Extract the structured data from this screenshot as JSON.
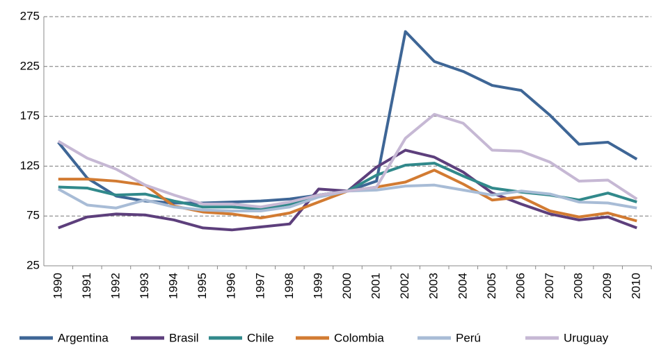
{
  "chart_data": {
    "type": "line",
    "categories": [
      "1990",
      "1991",
      "1992",
      "1993",
      "1994",
      "1995",
      "1996",
      "1997",
      "1998",
      "1999",
      "2000",
      "2001",
      "2002",
      "2003",
      "2004",
      "2005",
      "2006",
      "2007",
      "2008",
      "2009",
      "2010"
    ],
    "series": [
      {
        "name": "Argentina",
        "color": "#3e6696",
        "values": [
          149,
          113,
          95,
          90,
          88,
          88,
          89,
          90,
          92,
          96,
          100,
          110,
          260,
          230,
          220,
          206,
          201,
          176,
          147,
          149,
          132
        ]
      },
      {
        "name": "Brasil",
        "color": "#5d3f7c",
        "values": [
          63,
          74,
          77,
          76,
          71,
          63,
          61,
          64,
          67,
          102,
          100,
          124,
          141,
          134,
          119,
          98,
          87,
          77,
          71,
          74,
          63
        ]
      },
      {
        "name": "Chile",
        "color": "#31898b",
        "values": [
          104,
          103,
          96,
          97,
          90,
          84,
          84,
          82,
          87,
          96,
          100,
          116,
          126,
          128,
          115,
          103,
          99,
          96,
          91,
          98,
          89
        ]
      },
      {
        "name": "Colombia",
        "color": "#d27b32",
        "values": [
          112,
          112,
          110,
          106,
          85,
          79,
          77,
          73,
          78,
          89,
          100,
          104,
          109,
          121,
          107,
          91,
          94,
          80,
          74,
          78,
          70
        ]
      },
      {
        "name": "Perú",
        "color": "#a8bcd6",
        "values": [
          102,
          86,
          83,
          91,
          84,
          81,
          80,
          80,
          84,
          94,
          100,
          101,
          105,
          106,
          101,
          96,
          100,
          97,
          89,
          88,
          83
        ]
      },
      {
        "name": "Uruguay",
        "color": "#c6b8d4",
        "values": [
          150,
          133,
          122,
          106,
          96,
          87,
          87,
          84,
          89,
          96,
          100,
          104,
          153,
          177,
          168,
          141,
          140,
          129,
          110,
          111,
          92
        ]
      }
    ],
    "ylim": [
      25,
      275
    ],
    "yticks": [
      25,
      75,
      125,
      175,
      225,
      275
    ],
    "grid": true
  }
}
